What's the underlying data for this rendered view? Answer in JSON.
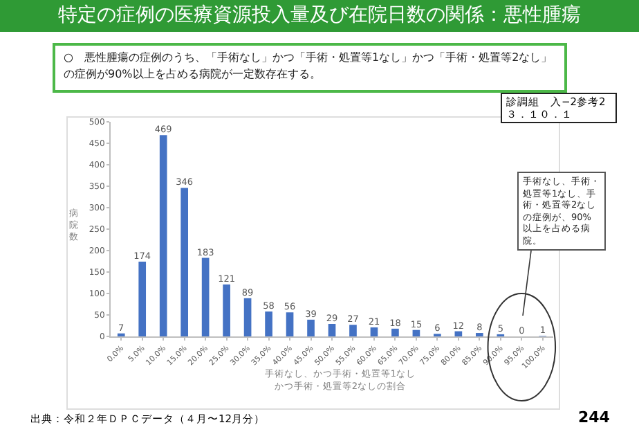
{
  "chart_data": {
    "type": "bar",
    "title": "特定の症例の医療資源投入量及び在院日数の関係：悪性腫瘍",
    "subtitle": "○　悪性腫瘍の症例のうち、「手術なし」かつ「手術・処置等1なし」かつ「手術・処置等2なし」の症例が90%以上を占める病院が一定数存在する。",
    "categories": [
      "0.0%",
      "5.0%",
      "10.0%",
      "15.0%",
      "20.0%",
      "25.0%",
      "30.0%",
      "35.0%",
      "40.0%",
      "45.0%",
      "50.0%",
      "55.0%",
      "60.0%",
      "65.0%",
      "70.0%",
      "75.0%",
      "80.0%",
      "85.0%",
      "90.0%",
      "95.0%",
      "100.0%"
    ],
    "values": [
      7,
      174,
      469,
      346,
      183,
      121,
      89,
      58,
      56,
      39,
      29,
      27,
      21,
      18,
      15,
      6,
      12,
      8,
      5,
      0,
      1
    ],
    "color": "#4472c4",
    "data_labels": true,
    "grid": false,
    "ylim": [
      0,
      500
    ],
    "yticks": [
      0,
      50,
      100,
      150,
      200,
      250,
      300,
      350,
      400,
      450,
      500
    ],
    "xlabel": "手術なし、かつ手術・処置等1なしかつ手術・処置等2なしの割合",
    "ylabel": "病院数",
    "annotations": [
      "手術なし、手術・処置等1なし、手術・処置等2なしの症例が、90%以上を占める病院。",
      "診調組　入−2参考2\n３．１０．１",
      "出典：令和２年ＤＰＣデータ（４月〜12月分）",
      "244"
    ]
  }
}
